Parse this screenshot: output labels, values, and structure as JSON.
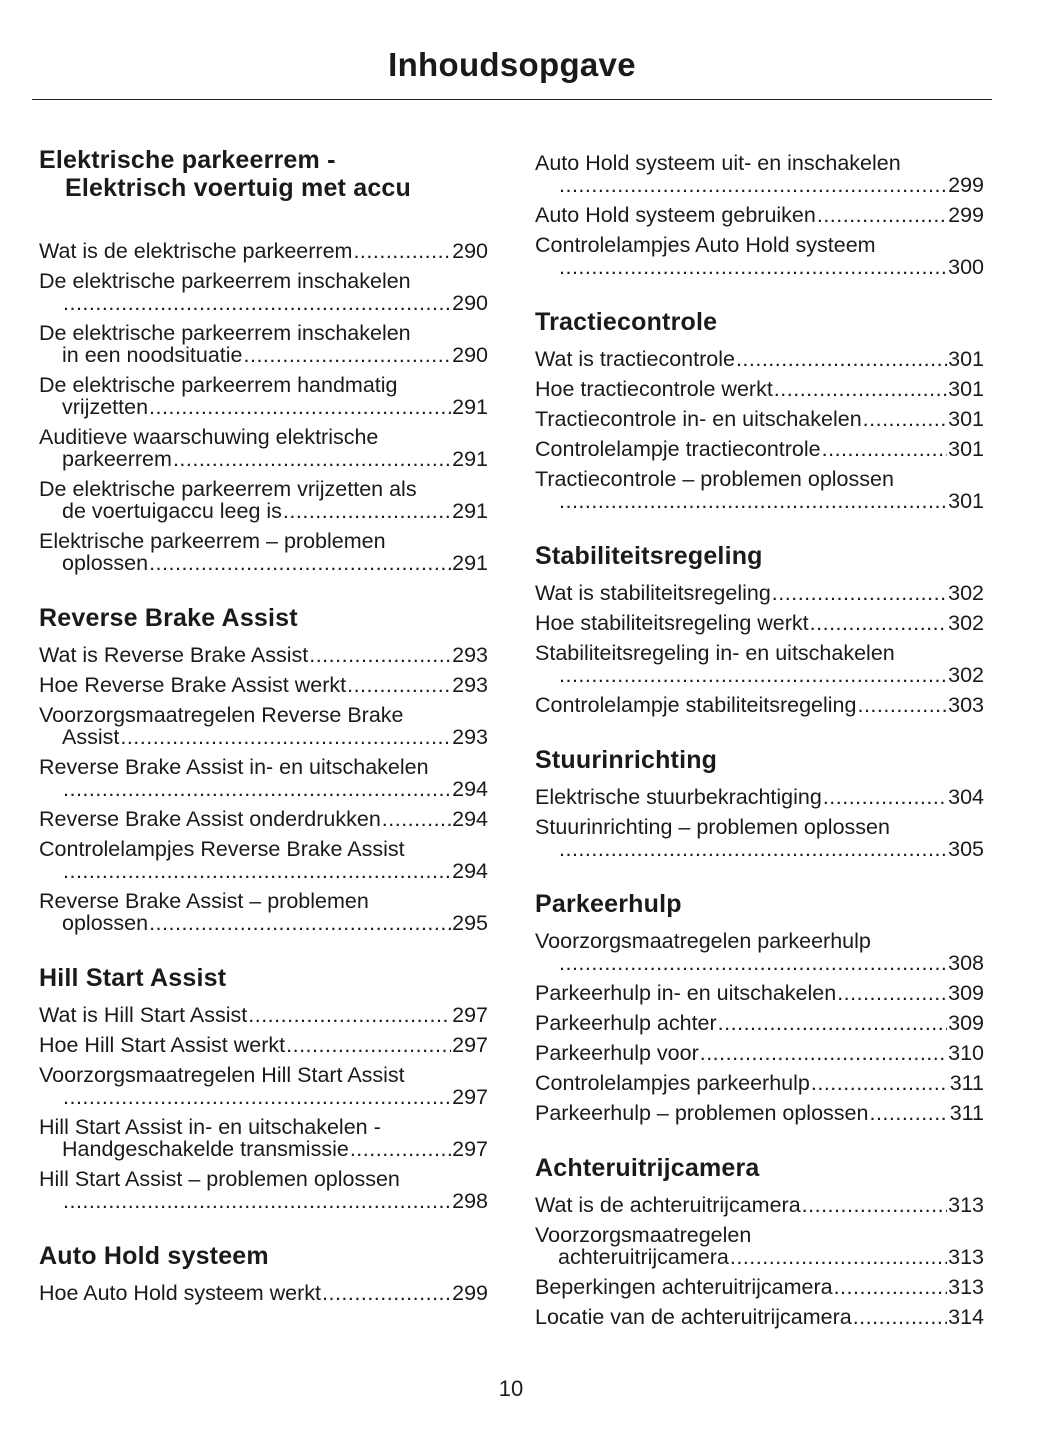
{
  "title": "Inhoudsopgave",
  "page_number": "10",
  "left": [
    {
      "heading": [
        "Elektrische parkeerrem -",
        "Elektrisch voertuig met accu"
      ],
      "entries": [
        {
          "line1": "Wat is de elektrische parkeerrem",
          "page": "290"
        },
        {
          "line1": "De elektrische parkeerrem inschakelen",
          "line2": "",
          "page": "290"
        },
        {
          "line1": "De elektrische parkeerrem inschakelen",
          "line2": "in een noodsituatie",
          "page": "290"
        },
        {
          "line1": "De elektrische parkeerrem handmatig",
          "line2": "vrijzetten",
          "page": "291"
        },
        {
          "line1": "Auditieve waarschuwing elektrische",
          "line2": "parkeerrem",
          "page": "291"
        },
        {
          "line1": "De elektrische parkeerrem vrijzetten als",
          "line2": "de voertuigaccu leeg is",
          "page": "291"
        },
        {
          "line1": "Elektrische parkeerrem – problemen",
          "line2": "oplossen",
          "page": "291"
        }
      ]
    },
    {
      "heading": [
        "Reverse Brake Assist"
      ],
      "entries": [
        {
          "line1": "Wat is Reverse Brake Assist",
          "page": "293"
        },
        {
          "line1": "Hoe Reverse Brake Assist werkt",
          "page": "293"
        },
        {
          "line1": "Voorzorgsmaatregelen Reverse Brake",
          "line2": "Assist",
          "page": "293"
        },
        {
          "line1": "Reverse Brake Assist in- en uitschakelen",
          "line2": "",
          "page": "294"
        },
        {
          "line1": "Reverse Brake Assist onderdrukken",
          "page": "294"
        },
        {
          "line1": "Controlelampjes Reverse Brake Assist",
          "line2": "",
          "page": "294"
        },
        {
          "line1": "Reverse Brake Assist – problemen",
          "line2": "oplossen",
          "page": "295"
        }
      ]
    },
    {
      "heading": [
        "Hill Start Assist"
      ],
      "entries": [
        {
          "line1": "Wat is Hill Start Assist",
          "page": "297"
        },
        {
          "line1": "Hoe Hill Start Assist werkt",
          "page": "297"
        },
        {
          "line1": "Voorzorgsmaatregelen Hill Start Assist",
          "line2": "",
          "page": "297"
        },
        {
          "line1": "Hill Start Assist in- en uitschakelen -",
          "line2": "Handgeschakelde transmissie",
          "page": "297"
        },
        {
          "line1": "Hill Start Assist – problemen oplossen",
          "line2": "",
          "page": "298"
        }
      ]
    },
    {
      "heading": [
        "Auto Hold systeem"
      ],
      "entries": [
        {
          "line1": "Hoe Auto Hold systeem werkt",
          "page": "299"
        }
      ]
    }
  ],
  "right": [
    {
      "heading": [],
      "entries": [
        {
          "line1": "Auto Hold systeem uit- en inschakelen",
          "line2": "",
          "page": "299"
        },
        {
          "line1": "Auto Hold systeem gebruiken",
          "page": "299"
        },
        {
          "line1": "Controlelampjes Auto Hold systeem",
          "line2": "",
          "page": "300"
        }
      ]
    },
    {
      "heading": [
        "Tractiecontrole"
      ],
      "entries": [
        {
          "line1": "Wat is tractiecontrole",
          "page": "301"
        },
        {
          "line1": "Hoe tractiecontrole werkt",
          "page": "301"
        },
        {
          "line1": "Tractiecontrole in- en uitschakelen",
          "page": "301"
        },
        {
          "line1": "Controlelampje tractiecontrole",
          "page": "301"
        },
        {
          "line1": "Tractiecontrole – problemen oplossen",
          "line2": "",
          "page": "301"
        }
      ]
    },
    {
      "heading": [
        "Stabiliteitsregeling"
      ],
      "entries": [
        {
          "line1": "Wat is stabiliteitsregeling",
          "page": "302"
        },
        {
          "line1": "Hoe stabiliteitsregeling werkt",
          "page": "302"
        },
        {
          "line1": "Stabiliteitsregeling in- en uitschakelen",
          "line2": "",
          "page": "302"
        },
        {
          "line1": "Controlelampje stabiliteitsregeling",
          "page": "303"
        }
      ]
    },
    {
      "heading": [
        "Stuurinrichting"
      ],
      "entries": [
        {
          "line1": "Elektrische stuurbekrachtiging",
          "page": "304"
        },
        {
          "line1": "Stuurinrichting – problemen oplossen",
          "line2": "",
          "page": "305"
        }
      ]
    },
    {
      "heading": [
        "Parkeerhulp"
      ],
      "entries": [
        {
          "line1": "Voorzorgsmaatregelen parkeerhulp",
          "line2": "",
          "page": "308"
        },
        {
          "line1": "Parkeerhulp in- en uitschakelen",
          "page": "309"
        },
        {
          "line1": "Parkeerhulp achter",
          "page": "309"
        },
        {
          "line1": "Parkeerhulp voor",
          "page": "310"
        },
        {
          "line1": "Controlelampjes parkeerhulp",
          "page": "311"
        },
        {
          "line1": "Parkeerhulp – problemen oplossen",
          "page": "311"
        }
      ]
    },
    {
      "heading": [
        "Achteruitrijcamera"
      ],
      "entries": [
        {
          "line1": "Wat is de achteruitrijcamera",
          "page": "313"
        },
        {
          "line1": "Voorzorgsmaatregelen",
          "line2": "achteruitrijcamera",
          "page": "313"
        },
        {
          "line1": "Beperkingen achteruitrijcamera",
          "page": "313"
        },
        {
          "line1": "Locatie van de achteruitrijcamera",
          "page": "314"
        }
      ]
    }
  ]
}
